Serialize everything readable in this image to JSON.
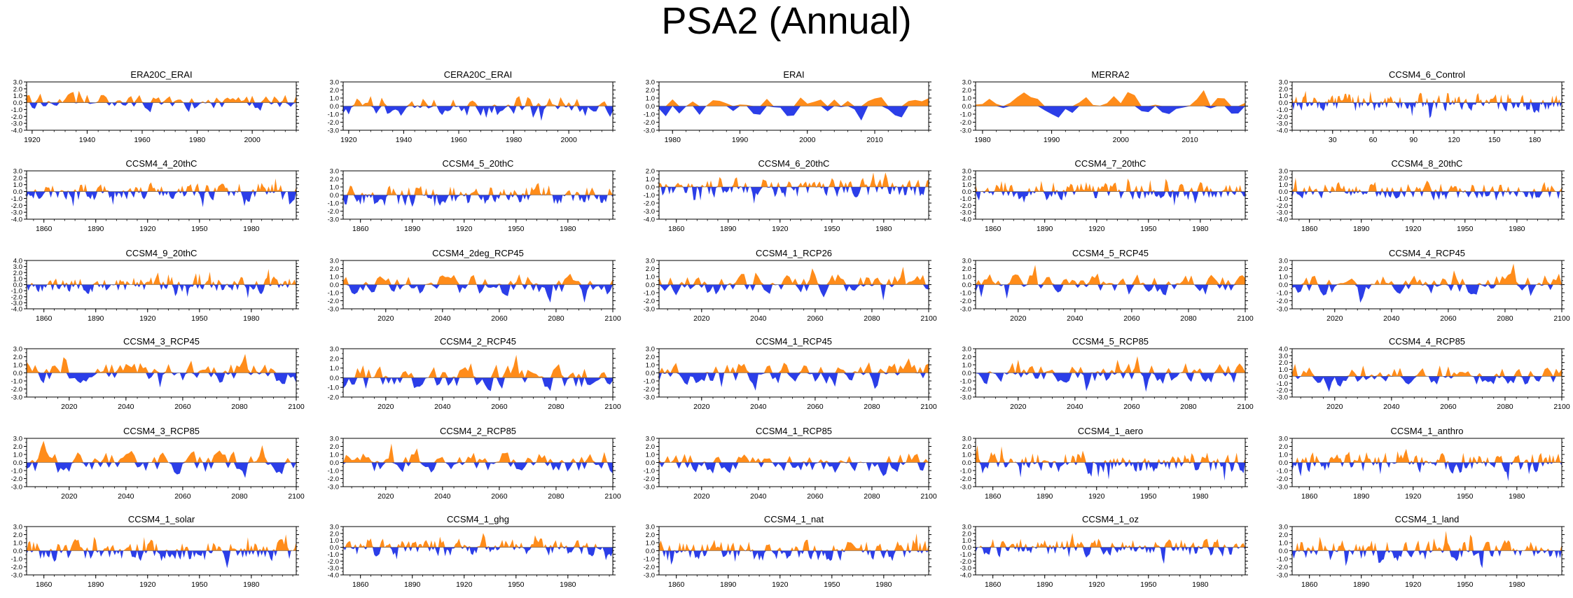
{
  "title": "PSA2 (Annual)",
  "colors": {
    "positive": "#ff8c1a",
    "negative": "#2b3ee8",
    "axis": "#000000"
  },
  "chart_data": [
    {
      "type": "area",
      "title": "ERA20C_ERAI",
      "xlim": [
        1918,
        2016
      ],
      "ylim": [
        -4,
        3
      ],
      "ymax_label": 3,
      "xticks": [
        1920,
        1940,
        1960,
        1980,
        2000
      ],
      "xtick_labels": [
        "1920",
        "1940",
        "1960",
        "1980",
        "2000"
      ],
      "seed": 11
    },
    {
      "type": "area",
      "title": "CERA20C_ERAI",
      "xlim": [
        1918,
        2016
      ],
      "ylim": [
        -3,
        3
      ],
      "ymax_label": 3,
      "xticks": [
        1920,
        1940,
        1960,
        1980,
        2000
      ],
      "xtick_labels": [
        "1920",
        "1940",
        "1960",
        "1980",
        "2000"
      ],
      "seed": 12
    },
    {
      "type": "area",
      "title": "ERAI",
      "xlim": [
        1978,
        2018
      ],
      "ylim": [
        -3,
        3
      ],
      "ymax_label": 3,
      "xticks": [
        1980,
        1990,
        2000,
        2010
      ],
      "xtick_labels": [
        "1980",
        "1990",
        "2000",
        "2010"
      ],
      "seed": 13
    },
    {
      "type": "area",
      "title": "MERRA2",
      "xlim": [
        1979,
        2018
      ],
      "ylim": [
        -3,
        3
      ],
      "ymax_label": 3,
      "xticks": [
        1980,
        1990,
        2000,
        2010
      ],
      "xtick_labels": [
        "1980",
        "1990",
        "2000",
        "2010"
      ],
      "seed": 14
    },
    {
      "type": "area",
      "title": "CCSM4_6_Control",
      "xlim": [
        0,
        200
      ],
      "ylim": [
        -4,
        3
      ],
      "ymax_label": 3,
      "xticks": [
        30,
        60,
        90,
        120,
        150,
        180
      ],
      "xtick_labels": [
        "30",
        "60",
        "90",
        "120",
        "150",
        "180"
      ],
      "seed": 15
    },
    {
      "type": "area",
      "title": "CCSM4_4_20thC",
      "xlim": [
        1850,
        2006
      ],
      "ylim": [
        -4,
        3
      ],
      "ymax_label": 3,
      "xticks": [
        1860,
        1890,
        1920,
        1950,
        1980
      ],
      "xtick_labels": [
        "1860",
        "1890",
        "1920",
        "1950",
        "1980"
      ],
      "seed": 21
    },
    {
      "type": "area",
      "title": "CCSM4_5_20thC",
      "xlim": [
        1850,
        2006
      ],
      "ylim": [
        -3,
        3
      ],
      "ymax_label": 3,
      "xticks": [
        1860,
        1890,
        1920,
        1950,
        1980
      ],
      "xtick_labels": [
        "1860",
        "1890",
        "1920",
        "1950",
        "1980"
      ],
      "seed": 22
    },
    {
      "type": "area",
      "title": "CCSM4_6_20thC",
      "xlim": [
        1850,
        2006
      ],
      "ylim": [
        -4,
        2
      ],
      "ymax_label": 2,
      "xticks": [
        1860,
        1890,
        1920,
        1950,
        1980
      ],
      "xtick_labels": [
        "1860",
        "1890",
        "1920",
        "1950",
        "1980"
      ],
      "seed": 23
    },
    {
      "type": "area",
      "title": "CCSM4_7_20thC",
      "xlim": [
        1850,
        2006
      ],
      "ylim": [
        -4,
        3
      ],
      "ymax_label": 3,
      "xticks": [
        1860,
        1890,
        1920,
        1950,
        1980
      ],
      "xtick_labels": [
        "1860",
        "1890",
        "1920",
        "1950",
        "1980"
      ],
      "seed": 24
    },
    {
      "type": "area",
      "title": "CCSM4_8_20thC",
      "xlim": [
        1850,
        2006
      ],
      "ylim": [
        -4,
        3
      ],
      "ymax_label": 3,
      "xticks": [
        1860,
        1890,
        1920,
        1950,
        1980
      ],
      "xtick_labels": [
        "1860",
        "1890",
        "1920",
        "1950",
        "1980"
      ],
      "seed": 25
    },
    {
      "type": "area",
      "title": "CCSM4_9_20thC",
      "xlim": [
        1850,
        2006
      ],
      "ylim": [
        -4,
        4
      ],
      "ymax_label": 4,
      "xticks": [
        1860,
        1890,
        1920,
        1950,
        1980
      ],
      "xtick_labels": [
        "1860",
        "1890",
        "1920",
        "1950",
        "1980"
      ],
      "seed": 31
    },
    {
      "type": "area",
      "title": "CCSM4_2deg_RCP45",
      "xlim": [
        2005,
        2100
      ],
      "ylim": [
        -3,
        3
      ],
      "ymax_label": 3,
      "xticks": [
        2020,
        2040,
        2060,
        2080,
        2100
      ],
      "xtick_labels": [
        "2020",
        "2040",
        "2060",
        "2080",
        "2100"
      ],
      "seed": 32
    },
    {
      "type": "area",
      "title": "CCSM4_1_RCP26",
      "xlim": [
        2005,
        2100
      ],
      "ylim": [
        -3,
        3
      ],
      "ymax_label": 3,
      "xticks": [
        2020,
        2040,
        2060,
        2080,
        2100
      ],
      "xtick_labels": [
        "2020",
        "2040",
        "2060",
        "2080",
        "2100"
      ],
      "seed": 33
    },
    {
      "type": "area",
      "title": "CCSM4_5_RCP45",
      "xlim": [
        2005,
        2100
      ],
      "ylim": [
        -3,
        3
      ],
      "ymax_label": 3,
      "xticks": [
        2020,
        2040,
        2060,
        2080,
        2100
      ],
      "xtick_labels": [
        "2020",
        "2040",
        "2060",
        "2080",
        "2100"
      ],
      "seed": 34
    },
    {
      "type": "area",
      "title": "CCSM4_4_RCP45",
      "xlim": [
        2005,
        2100
      ],
      "ylim": [
        -3,
        3
      ],
      "ymax_label": 3,
      "xticks": [
        2020,
        2040,
        2060,
        2080,
        2100
      ],
      "xtick_labels": [
        "2020",
        "2040",
        "2060",
        "2080",
        "2100"
      ],
      "seed": 35
    },
    {
      "type": "area",
      "title": "CCSM4_3_RCP45",
      "xlim": [
        2005,
        2100
      ],
      "ylim": [
        -3,
        3
      ],
      "ymax_label": 3,
      "xticks": [
        2020,
        2040,
        2060,
        2080,
        2100
      ],
      "xtick_labels": [
        "2020",
        "2040",
        "2060",
        "2080",
        "2100"
      ],
      "seed": 41
    },
    {
      "type": "area",
      "title": "CCSM4_2_RCP45",
      "xlim": [
        2005,
        2100
      ],
      "ylim": [
        -2,
        3
      ],
      "ymax_label": 3,
      "xticks": [
        2020,
        2040,
        2060,
        2080,
        2100
      ],
      "xtick_labels": [
        "2020",
        "2040",
        "2060",
        "2080",
        "2100"
      ],
      "seed": 42
    },
    {
      "type": "area",
      "title": "CCSM4_1_RCP45",
      "xlim": [
        2005,
        2100
      ],
      "ylim": [
        -3,
        3
      ],
      "ymax_label": 3,
      "xticks": [
        2020,
        2040,
        2060,
        2080,
        2100
      ],
      "xtick_labels": [
        "2020",
        "2040",
        "2060",
        "2080",
        "2100"
      ],
      "seed": 43
    },
    {
      "type": "area",
      "title": "CCSM4_5_RCP85",
      "xlim": [
        2005,
        2100
      ],
      "ylim": [
        -3,
        3
      ],
      "ymax_label": 3,
      "xticks": [
        2020,
        2040,
        2060,
        2080,
        2100
      ],
      "xtick_labels": [
        "2020",
        "2040",
        "2060",
        "2080",
        "2100"
      ],
      "seed": 44
    },
    {
      "type": "area",
      "title": "CCSM4_4_RCP85",
      "xlim": [
        2005,
        2100
      ],
      "ylim": [
        -3,
        4
      ],
      "ymax_label": 4,
      "xticks": [
        2020,
        2040,
        2060,
        2080,
        2100
      ],
      "xtick_labels": [
        "2020",
        "2040",
        "2060",
        "2080",
        "2100"
      ],
      "seed": 45
    },
    {
      "type": "area",
      "title": "CCSM4_3_RCP85",
      "xlim": [
        2005,
        2100
      ],
      "ylim": [
        -3,
        3
      ],
      "ymax_label": 3,
      "xticks": [
        2020,
        2040,
        2060,
        2080,
        2100
      ],
      "xtick_labels": [
        "2020",
        "2040",
        "2060",
        "2080",
        "2100"
      ],
      "seed": 51
    },
    {
      "type": "area",
      "title": "CCSM4_2_RCP85",
      "xlim": [
        2005,
        2100
      ],
      "ylim": [
        -3,
        3
      ],
      "ymax_label": 3,
      "xticks": [
        2020,
        2040,
        2060,
        2080,
        2100
      ],
      "xtick_labels": [
        "2020",
        "2040",
        "2060",
        "2080",
        "2100"
      ],
      "seed": 52
    },
    {
      "type": "area",
      "title": "CCSM4_1_RCP85",
      "xlim": [
        2005,
        2100
      ],
      "ylim": [
        -3,
        3
      ],
      "ymax_label": 3,
      "xticks": [
        2020,
        2040,
        2060,
        2080,
        2100
      ],
      "xtick_labels": [
        "2020",
        "2040",
        "2060",
        "2080",
        "2100"
      ],
      "seed": 53
    },
    {
      "type": "area",
      "title": "CCSM4_1_aero",
      "xlim": [
        1850,
        2006
      ],
      "ylim": [
        -3,
        3
      ],
      "ymax_label": 3,
      "xticks": [
        1860,
        1890,
        1920,
        1950,
        1980
      ],
      "xtick_labels": [
        "1860",
        "1890",
        "1920",
        "1950",
        "1980"
      ],
      "seed": 54
    },
    {
      "type": "area",
      "title": "CCSM4_1_anthro",
      "xlim": [
        1850,
        2006
      ],
      "ylim": [
        -3,
        3
      ],
      "ymax_label": 3,
      "xticks": [
        1860,
        1890,
        1920,
        1950,
        1980
      ],
      "xtick_labels": [
        "1860",
        "1890",
        "1920",
        "1950",
        "1980"
      ],
      "seed": 55
    },
    {
      "type": "area",
      "title": "CCSM4_1_solar",
      "xlim": [
        1850,
        2006
      ],
      "ylim": [
        -3,
        3
      ],
      "ymax_label": 3,
      "xticks": [
        1860,
        1890,
        1920,
        1950,
        1980
      ],
      "xtick_labels": [
        "1860",
        "1890",
        "1920",
        "1950",
        "1980"
      ],
      "seed": 61
    },
    {
      "type": "area",
      "title": "CCSM4_1_ghg",
      "xlim": [
        1850,
        2006
      ],
      "ylim": [
        -4,
        3
      ],
      "ymax_label": 3,
      "xticks": [
        1860,
        1890,
        1920,
        1950,
        1980
      ],
      "xtick_labels": [
        "1860",
        "1890",
        "1920",
        "1950",
        "1980"
      ],
      "seed": 62
    },
    {
      "type": "area",
      "title": "CCSM4_1_nat",
      "xlim": [
        1850,
        2006
      ],
      "ylim": [
        -3,
        3
      ],
      "ymax_label": 3,
      "xticks": [
        1860,
        1890,
        1920,
        1950,
        1980
      ],
      "xtick_labels": [
        "1860",
        "1890",
        "1920",
        "1950",
        "1980"
      ],
      "seed": 63
    },
    {
      "type": "area",
      "title": "CCSM4_1_oz",
      "xlim": [
        1850,
        2006
      ],
      "ylim": [
        -4,
        3
      ],
      "ymax_label": 3,
      "xticks": [
        1860,
        1890,
        1920,
        1950,
        1980
      ],
      "xtick_labels": [
        "1860",
        "1890",
        "1920",
        "1950",
        "1980"
      ],
      "seed": 64
    },
    {
      "type": "area",
      "title": "CCSM4_1_land",
      "xlim": [
        1850,
        2006
      ],
      "ylim": [
        -3,
        3
      ],
      "ymax_label": 3,
      "xticks": [
        1860,
        1890,
        1920,
        1950,
        1980
      ],
      "xtick_labels": [
        "1860",
        "1890",
        "1920",
        "1950",
        "1980"
      ],
      "seed": 65
    }
  ]
}
